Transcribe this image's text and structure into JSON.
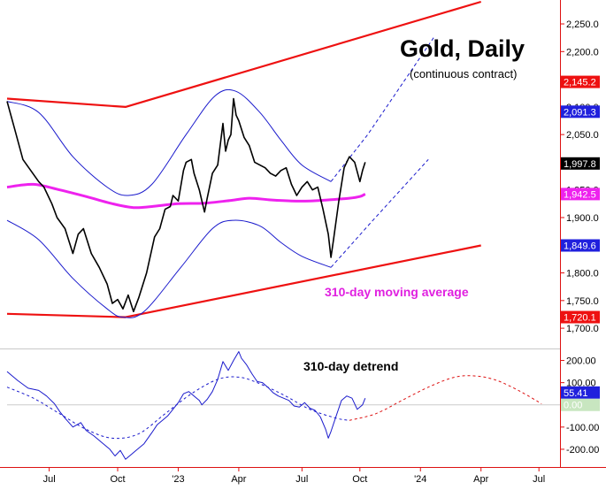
{
  "chart_data": {
    "type": "line",
    "title": "Gold, Daily",
    "subtitle": "(continuous contract)",
    "annotations": {
      "moving_average": "310-day moving average",
      "detrend": "310-day detrend"
    },
    "x_ticks": [
      "Jul",
      "Oct",
      "'23",
      "Apr",
      "Jul",
      "Oct",
      "'24",
      "Apr",
      "Jul"
    ],
    "price_panel": {
      "y_ticks": [
        "2,250.0",
        "2,200.0",
        "2,150.0",
        "2,100.0",
        "2,050.0",
        "2,000.0",
        "1,950.0",
        "1,900.0",
        "1,850.0",
        "1,800.0",
        "1,750.0",
        "1,700.0"
      ],
      "y_tick_values": [
        2250,
        2200,
        2150,
        2100,
        2050,
        2000,
        1950,
        1900,
        1850,
        1800,
        1750,
        1700
      ],
      "ylim": [
        1665,
        2290
      ],
      "value_labels": [
        {
          "text": "2,145.2",
          "value": 2145.2,
          "color": "#ee1111"
        },
        {
          "text": "2,091.3",
          "value": 2091.3,
          "color": "#2020dd"
        },
        {
          "text": "1,997.8",
          "value": 1997.8,
          "color": "#000000"
        },
        {
          "text": "1,942.5",
          "value": 1942.5,
          "color": "#ee22ee"
        },
        {
          "text": "1,849.6",
          "value": 1849.6,
          "color": "#2020dd"
        },
        {
          "text": "1,720.1",
          "value": 1720.1,
          "color": "#ee1111"
        }
      ],
      "price_points": [
        [
          0,
          2110
        ],
        [
          3,
          2058
        ],
        [
          6,
          2005
        ],
        [
          9,
          1985
        ],
        [
          12,
          1965
        ],
        [
          14,
          1955
        ],
        [
          17,
          1925
        ],
        [
          19,
          1900
        ],
        [
          22,
          1880
        ],
        [
          25,
          1835
        ],
        [
          27,
          1870
        ],
        [
          29,
          1880
        ],
        [
          32,
          1835
        ],
        [
          35,
          1810
        ],
        [
          38,
          1780
        ],
        [
          40,
          1745
        ],
        [
          42,
          1752
        ],
        [
          44,
          1735
        ],
        [
          46,
          1760
        ],
        [
          48,
          1730
        ],
        [
          50,
          1755
        ],
        [
          53,
          1800
        ],
        [
          56,
          1865
        ],
        [
          58,
          1880
        ],
        [
          60,
          1915
        ],
        [
          62,
          1920
        ],
        [
          63,
          1940
        ],
        [
          65,
          1930
        ],
        [
          67,
          1985
        ],
        [
          68,
          2000
        ],
        [
          70,
          2005
        ],
        [
          71,
          1980
        ],
        [
          73,
          1950
        ],
        [
          74,
          1930
        ],
        [
          75,
          1910
        ],
        [
          76,
          1935
        ],
        [
          78,
          1980
        ],
        [
          80,
          1995
        ],
        [
          82,
          2070
        ],
        [
          83,
          2020
        ],
        [
          84,
          2040
        ],
        [
          85,
          2050
        ],
        [
          86,
          2115
        ],
        [
          87,
          2085
        ],
        [
          88,
          2075
        ],
        [
          90,
          2045
        ],
        [
          92,
          2030
        ],
        [
          94,
          2000
        ],
        [
          96,
          1995
        ],
        [
          98,
          1990
        ],
        [
          100,
          1980
        ],
        [
          102,
          1975
        ],
        [
          104,
          1985
        ],
        [
          106,
          1990
        ],
        [
          108,
          1960
        ],
        [
          110,
          1940
        ],
        [
          112,
          1955
        ],
        [
          114,
          1965
        ],
        [
          116,
          1950
        ],
        [
          118,
          1955
        ],
        [
          120,
          1915
        ],
        [
          122,
          1870
        ],
        [
          123,
          1828
        ],
        [
          124,
          1860
        ],
        [
          126,
          1930
        ],
        [
          128,
          1990
        ],
        [
          130,
          2010
        ],
        [
          132,
          2000
        ],
        [
          134,
          1965
        ],
        [
          135,
          1985
        ],
        [
          136,
          2000
        ]
      ],
      "ma_points": [
        [
          0,
          1955
        ],
        [
          10,
          1960
        ],
        [
          20,
          1950
        ],
        [
          30,
          1938
        ],
        [
          40,
          1925
        ],
        [
          48,
          1918
        ],
        [
          55,
          1920
        ],
        [
          65,
          1925
        ],
        [
          75,
          1926
        ],
        [
          85,
          1931
        ],
        [
          92,
          1935
        ],
        [
          100,
          1932
        ],
        [
          108,
          1930
        ],
        [
          115,
          1930
        ],
        [
          122,
          1932
        ],
        [
          130,
          1935
        ],
        [
          134,
          1938
        ],
        [
          136,
          1942.5
        ]
      ],
      "channel_upper": [
        [
          0,
          2115
        ],
        [
          45,
          2100
        ],
        [
          180,
          2290
        ]
      ],
      "channel_lower": [
        [
          0,
          1726
        ],
        [
          45,
          1720
        ],
        [
          180,
          1849.6
        ]
      ],
      "cycle_upper": [
        [
          0,
          2110
        ],
        [
          12,
          2090
        ],
        [
          25,
          2010
        ],
        [
          38,
          1955
        ],
        [
          46,
          1940
        ],
        [
          55,
          1960
        ],
        [
          68,
          2050
        ],
        [
          79,
          2120
        ],
        [
          87,
          2128
        ],
        [
          96,
          2090
        ],
        [
          104,
          2040
        ],
        [
          112,
          1995
        ],
        [
          123,
          1965
        ]
      ],
      "cycle_upper_dashed": [
        [
          123,
          1965
        ],
        [
          137,
          2050
        ],
        [
          162,
          2225
        ]
      ],
      "cycle_lower": [
        [
          0,
          1895
        ],
        [
          12,
          1860
        ],
        [
          25,
          1790
        ],
        [
          38,
          1735
        ],
        [
          44,
          1720
        ],
        [
          52,
          1730
        ],
        [
          66,
          1810
        ],
        [
          78,
          1880
        ],
        [
          86,
          1895
        ],
        [
          96,
          1885
        ],
        [
          104,
          1855
        ],
        [
          112,
          1830
        ],
        [
          123,
          1810
        ]
      ],
      "cycle_lower_dashed": [
        [
          123,
          1810
        ],
        [
          138,
          1890
        ],
        [
          160,
          2005
        ]
      ]
    },
    "detrend_panel": {
      "y_ticks": [
        "200.00",
        "100.00",
        "-100.00",
        "-200.00"
      ],
      "y_tick_values": [
        200,
        100,
        -100,
        -200
      ],
      "ylim": [
        -260,
        250
      ],
      "value_labels": [
        {
          "text": "55.41",
          "value": 55.41,
          "color": "#2020dd"
        },
        {
          "text": "0.00",
          "value": 0,
          "color": "#c8e6c0"
        }
      ],
      "detrend_points": [
        [
          0,
          150
        ],
        [
          4,
          110
        ],
        [
          8,
          75
        ],
        [
          12,
          65
        ],
        [
          15,
          40
        ],
        [
          18,
          5
        ],
        [
          20,
          -30
        ],
        [
          22,
          -60
        ],
        [
          25,
          -100
        ],
        [
          28,
          -80
        ],
        [
          30,
          -115
        ],
        [
          33,
          -140
        ],
        [
          36,
          -170
        ],
        [
          39,
          -200
        ],
        [
          41,
          -230
        ],
        [
          43,
          -205
        ],
        [
          45,
          -245
        ],
        [
          47,
          -225
        ],
        [
          49,
          -205
        ],
        [
          52,
          -175
        ],
        [
          55,
          -125
        ],
        [
          57,
          -90
        ],
        [
          59,
          -70
        ],
        [
          61,
          -50
        ],
        [
          63,
          -20
        ],
        [
          65,
          10
        ],
        [
          67,
          50
        ],
        [
          69,
          60
        ],
        [
          71,
          40
        ],
        [
          73,
          20
        ],
        [
          74,
          0
        ],
        [
          76,
          25
        ],
        [
          78,
          60
        ],
        [
          80,
          115
        ],
        [
          82,
          195
        ],
        [
          84,
          155
        ],
        [
          86,
          200
        ],
        [
          88,
          240
        ],
        [
          89,
          210
        ],
        [
          91,
          180
        ],
        [
          93,
          140
        ],
        [
          95,
          105
        ],
        [
          97,
          100
        ],
        [
          99,
          80
        ],
        [
          101,
          55
        ],
        [
          103,
          40
        ],
        [
          105,
          30
        ],
        [
          107,
          20
        ],
        [
          109,
          -5
        ],
        [
          111,
          -10
        ],
        [
          113,
          10
        ],
        [
          115,
          -15
        ],
        [
          117,
          -25
        ],
        [
          119,
          -55
        ],
        [
          121,
          -110
        ],
        [
          122,
          -150
        ],
        [
          123,
          -120
        ],
        [
          125,
          -50
        ],
        [
          127,
          20
        ],
        [
          129,
          40
        ],
        [
          131,
          30
        ],
        [
          133,
          -20
        ],
        [
          135,
          0
        ],
        [
          136,
          30
        ]
      ],
      "cycle_points": [
        [
          0,
          80
        ],
        [
          10,
          30
        ],
        [
          20,
          -40
        ],
        [
          30,
          -110
        ],
        [
          40,
          -150
        ],
        [
          50,
          -130
        ],
        [
          60,
          -40
        ],
        [
          70,
          50
        ],
        [
          80,
          115
        ],
        [
          88,
          125
        ],
        [
          95,
          100
        ],
        [
          105,
          45
        ],
        [
          115,
          -20
        ],
        [
          125,
          -60
        ],
        [
          130,
          -70
        ]
      ],
      "cycle_projection": [
        [
          130,
          -70
        ],
        [
          140,
          -40
        ],
        [
          150,
          20
        ],
        [
          160,
          80
        ],
        [
          170,
          125
        ],
        [
          178,
          130
        ],
        [
          186,
          110
        ],
        [
          195,
          60
        ],
        [
          203,
          5
        ]
      ]
    },
    "series": [
      {
        "name": "Gold",
        "color": "#000000"
      },
      {
        "name": "310-day moving average",
        "color": "#ee22ee"
      },
      {
        "name": "310-day detrend",
        "color": "#2020aa"
      }
    ],
    "grid": false
  }
}
